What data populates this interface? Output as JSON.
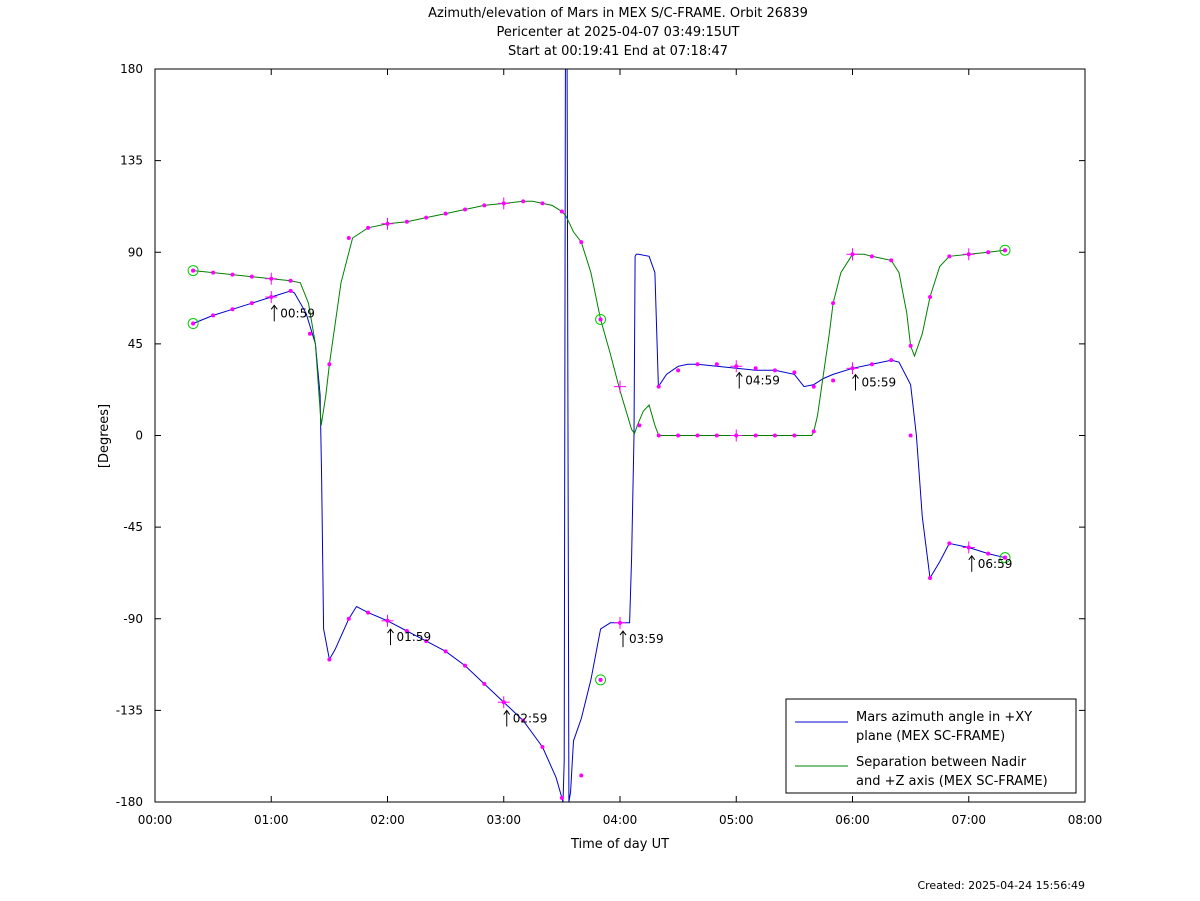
{
  "chart_data": {
    "type": "line",
    "title_lines": [
      "Azimuth/elevation of Mars in MEX S/C-FRAME.  Orbit 26839",
      "Pericenter at 2025-04-07 03:49:15UT",
      "Start at 00:19:41 End at 07:18:47"
    ],
    "xlabel": "Time of day UT",
    "ylabel": "[Degrees]",
    "xlim": [
      0,
      8
    ],
    "ylim": [
      -180,
      180
    ],
    "x_ticks": [
      0,
      1,
      2,
      3,
      4,
      5,
      6,
      7,
      8
    ],
    "x_tick_labels": [
      "00:00",
      "01:00",
      "02:00",
      "03:00",
      "04:00",
      "05:00",
      "06:00",
      "07:00",
      "08:00"
    ],
    "y_ticks": [
      -180,
      -135,
      -90,
      -45,
      0,
      45,
      90,
      135,
      180
    ],
    "y_tick_labels": [
      "-180",
      "-135",
      "-90",
      "-45",
      "0",
      "45",
      "90",
      "135",
      "180"
    ],
    "legend_position": "bottom-right",
    "series": [
      {
        "name": "Mars azimuth angle in +XY plane (MEX SC-FRAME)",
        "legend_lines": [
          "Mars azimuth angle in +XY",
          "plane (MEX SC-FRAME)"
        ],
        "color": "#0000cc",
        "x": [
          0.328,
          0.5,
          0.667,
          0.833,
          1.0,
          1.167,
          1.2,
          1.3,
          1.38,
          1.42,
          1.433,
          1.45,
          1.5,
          1.55,
          1.667,
          1.733,
          1.833,
          2.0,
          2.167,
          2.333,
          2.5,
          2.667,
          2.833,
          3.0,
          3.167,
          3.333,
          3.45,
          3.5,
          3.51,
          3.52,
          3.53,
          3.545,
          3.56,
          3.575,
          3.59,
          3.6,
          3.667,
          3.75,
          3.833,
          3.917,
          3.95,
          4.0,
          4.083,
          4.1,
          4.12,
          4.13,
          4.14,
          4.16,
          4.25,
          4.3,
          4.33,
          4.4,
          4.5,
          4.583,
          4.667,
          4.833,
          5.0,
          5.167,
          5.333,
          5.5,
          5.583,
          5.667,
          5.75,
          5.833,
          6.0,
          6.167,
          6.333,
          6.4,
          6.5,
          6.55,
          6.6,
          6.667,
          6.75,
          6.833,
          7.0,
          7.167,
          7.312
        ],
        "y": [
          55,
          59,
          62,
          65,
          68,
          71,
          70,
          60,
          45,
          20,
          -20,
          -95,
          -110,
          -105,
          -90,
          -84,
          -87,
          -91,
          -96,
          -101,
          -106,
          -113,
          -122,
          -131,
          -140,
          -153,
          -168,
          -178,
          -180,
          -160,
          180,
          180,
          -180,
          -175,
          -160,
          -150,
          -139,
          -120,
          -95,
          -92,
          -92,
          -92,
          -92,
          -60,
          0,
          88,
          89,
          89,
          88,
          80,
          24,
          30,
          34,
          35,
          35,
          34,
          33,
          32,
          32,
          30,
          24,
          25,
          28,
          30,
          33,
          35,
          37,
          36,
          25,
          0,
          -40,
          -70,
          -62,
          -53,
          -55,
          -58,
          -60
        ]
      },
      {
        "name": "Separation between Nadir and +Z axis (MEX SC-FRAME)",
        "legend_lines": [
          "Separation between Nadir",
          "and +Z axis (MEX SC-FRAME)"
        ],
        "color": "#008000",
        "x": [
          0.328,
          0.5,
          0.667,
          0.833,
          1.0,
          1.167,
          1.25,
          1.32,
          1.38,
          1.43,
          1.47,
          1.5,
          1.6,
          1.7,
          1.833,
          2.0,
          2.167,
          2.333,
          2.5,
          2.667,
          2.833,
          3.0,
          3.167,
          3.25,
          3.333,
          3.417,
          3.5,
          3.533,
          3.55,
          3.6,
          3.667,
          3.75,
          3.833,
          3.917,
          4.0,
          4.1,
          4.125,
          4.15,
          4.2,
          4.25,
          4.3,
          4.333,
          4.5,
          4.667,
          4.833,
          5.0,
          5.167,
          5.333,
          5.5,
          5.65,
          5.667,
          5.7,
          5.75,
          5.8,
          5.833,
          5.9,
          6.0,
          6.1,
          6.167,
          6.333,
          6.4,
          6.467,
          6.5,
          6.533,
          6.6,
          6.667,
          6.75,
          6.833,
          7.0,
          7.167,
          7.312
        ],
        "y": [
          81,
          80,
          79,
          78,
          77,
          76,
          75,
          65,
          45,
          5,
          20,
          35,
          75,
          97,
          102,
          104,
          105,
          107,
          109,
          111,
          113,
          114,
          115,
          115,
          114,
          113,
          110,
          108,
          106,
          100,
          95,
          80,
          57,
          40,
          22,
          3,
          1,
          5,
          12,
          15,
          5,
          0,
          0,
          0,
          0,
          0,
          0,
          0,
          0,
          0,
          2,
          10,
          30,
          50,
          65,
          80,
          89,
          89,
          88,
          86,
          80,
          60,
          44,
          39,
          50,
          68,
          83,
          88,
          89,
          90,
          91
        ]
      }
    ],
    "pink_markers": [
      {
        "x": 0.328,
        "y": 55
      },
      {
        "x": 0.5,
        "y": 59
      },
      {
        "x": 0.667,
        "y": 62
      },
      {
        "x": 0.833,
        "y": 65
      },
      {
        "x": 1.0,
        "y": 68
      },
      {
        "x": 1.167,
        "y": 71
      },
      {
        "x": 1.333,
        "y": 50
      },
      {
        "x": 1.5,
        "y": -110
      },
      {
        "x": 1.667,
        "y": -90
      },
      {
        "x": 1.833,
        "y": -87
      },
      {
        "x": 2.0,
        "y": -91
      },
      {
        "x": 2.167,
        "y": -96
      },
      {
        "x": 2.333,
        "y": -101
      },
      {
        "x": 2.5,
        "y": -106
      },
      {
        "x": 2.667,
        "y": -113
      },
      {
        "x": 2.833,
        "y": -122
      },
      {
        "x": 3.0,
        "y": -131
      },
      {
        "x": 3.167,
        "y": -140
      },
      {
        "x": 3.333,
        "y": -153
      },
      {
        "x": 3.5,
        "y": -178
      },
      {
        "x": 3.667,
        "y": -167
      },
      {
        "x": 3.833,
        "y": -120
      },
      {
        "x": 4.0,
        "y": -92
      },
      {
        "x": 4.333,
        "y": 24
      },
      {
        "x": 4.5,
        "y": 32
      },
      {
        "x": 4.667,
        "y": 35
      },
      {
        "x": 4.833,
        "y": 35
      },
      {
        "x": 5.0,
        "y": 34
      },
      {
        "x": 5.167,
        "y": 33
      },
      {
        "x": 5.333,
        "y": 32
      },
      {
        "x": 5.5,
        "y": 31
      },
      {
        "x": 5.667,
        "y": 24
      },
      {
        "x": 5.833,
        "y": 27
      },
      {
        "x": 6.0,
        "y": 33
      },
      {
        "x": 6.167,
        "y": 35
      },
      {
        "x": 6.333,
        "y": 37
      },
      {
        "x": 6.5,
        "y": 0
      },
      {
        "x": 6.667,
        "y": -70
      },
      {
        "x": 6.833,
        "y": -53
      },
      {
        "x": 7.0,
        "y": -55
      },
      {
        "x": 7.167,
        "y": -58
      },
      {
        "x": 7.312,
        "y": -60
      },
      {
        "x": 0.328,
        "y": 81
      },
      {
        "x": 0.5,
        "y": 80
      },
      {
        "x": 0.667,
        "y": 79
      },
      {
        "x": 0.833,
        "y": 78
      },
      {
        "x": 1.0,
        "y": 77
      },
      {
        "x": 1.167,
        "y": 76
      },
      {
        "x": 1.5,
        "y": 35
      },
      {
        "x": 1.667,
        "y": 97
      },
      {
        "x": 1.833,
        "y": 102
      },
      {
        "x": 2.0,
        "y": 104
      },
      {
        "x": 2.167,
        "y": 105
      },
      {
        "x": 2.333,
        "y": 107
      },
      {
        "x": 2.5,
        "y": 109
      },
      {
        "x": 2.667,
        "y": 111
      },
      {
        "x": 2.833,
        "y": 113
      },
      {
        "x": 3.0,
        "y": 114
      },
      {
        "x": 3.167,
        "y": 115
      },
      {
        "x": 3.333,
        "y": 114
      },
      {
        "x": 3.5,
        "y": 110
      },
      {
        "x": 3.667,
        "y": 95
      },
      {
        "x": 3.833,
        "y": 57
      },
      {
        "x": 4.167,
        "y": 5
      },
      {
        "x": 4.333,
        "y": 0
      },
      {
        "x": 4.5,
        "y": 0
      },
      {
        "x": 4.667,
        "y": 0
      },
      {
        "x": 4.833,
        "y": 0
      },
      {
        "x": 5.0,
        "y": 0
      },
      {
        "x": 5.167,
        "y": 0
      },
      {
        "x": 5.333,
        "y": 0
      },
      {
        "x": 5.5,
        "y": 0
      },
      {
        "x": 5.667,
        "y": 2
      },
      {
        "x": 5.833,
        "y": 65
      },
      {
        "x": 6.0,
        "y": 89
      },
      {
        "x": 6.167,
        "y": 88
      },
      {
        "x": 6.333,
        "y": 86
      },
      {
        "x": 6.5,
        "y": 44
      },
      {
        "x": 6.667,
        "y": 68
      },
      {
        "x": 6.833,
        "y": 88
      },
      {
        "x": 7.0,
        "y": 89
      },
      {
        "x": 7.167,
        "y": 90
      },
      {
        "x": 7.312,
        "y": 91
      }
    ],
    "hour_crosses": [
      {
        "x": 1.0,
        "y": 77
      },
      {
        "x": 1.0,
        "y": 68
      },
      {
        "x": 2.0,
        "y": 104
      },
      {
        "x": 2.0,
        "y": -91
      },
      {
        "x": 3.0,
        "y": 114
      },
      {
        "x": 3.0,
        "y": -131
      },
      {
        "x": 4.0,
        "y": 24
      },
      {
        "x": 4.0,
        "y": -92
      },
      {
        "x": 5.0,
        "y": 0
      },
      {
        "x": 5.0,
        "y": 34
      },
      {
        "x": 6.0,
        "y": 89
      },
      {
        "x": 6.0,
        "y": 33
      },
      {
        "x": 7.0,
        "y": 89
      },
      {
        "x": 7.0,
        "y": -55
      }
    ],
    "circle_markers": [
      {
        "x": 0.328,
        "y": 81
      },
      {
        "x": 0.328,
        "y": 55
      },
      {
        "x": 3.833,
        "y": 57
      },
      {
        "x": 3.833,
        "y": -120
      },
      {
        "x": 7.312,
        "y": 91
      },
      {
        "x": 7.312,
        "y": -60
      }
    ],
    "annotations": [
      {
        "x": 1.0,
        "y": 60,
        "text": "00:59"
      },
      {
        "x": 2.0,
        "y": -99,
        "text": "01:59"
      },
      {
        "x": 3.0,
        "y": -139,
        "text": "02:59"
      },
      {
        "x": 4.0,
        "y": -100,
        "text": "03:59"
      },
      {
        "x": 5.0,
        "y": 27,
        "text": "04:59"
      },
      {
        "x": 6.0,
        "y": 26,
        "text": "05:59"
      },
      {
        "x": 7.0,
        "y": -63,
        "text": "06:59"
      }
    ],
    "colors": {
      "marker": "#ff00ff",
      "circle": "#00cc00"
    }
  },
  "footer": {
    "created": "Created: 2025-04-24 15:56:49"
  }
}
